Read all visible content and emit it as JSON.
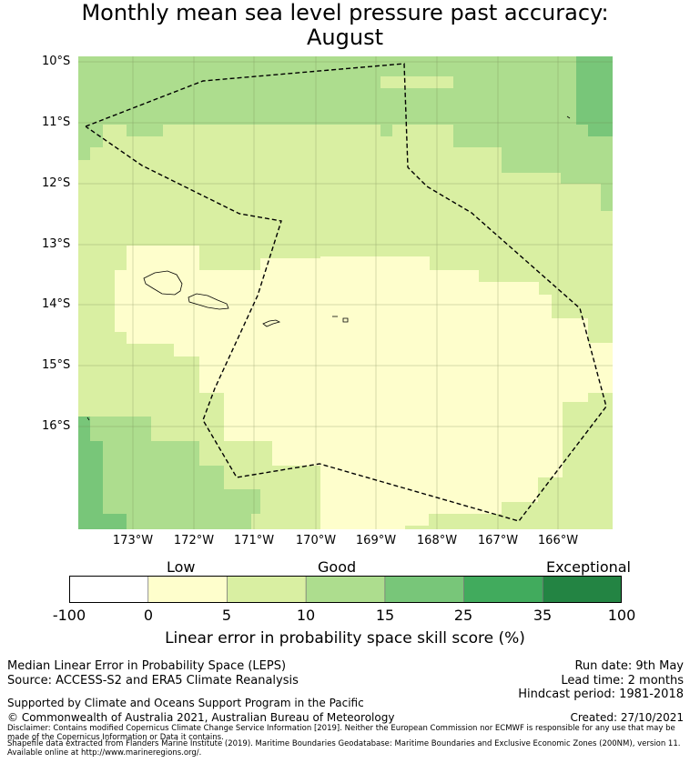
{
  "title_line1": "Monthly mean sea level pressure past accuracy:",
  "title_line2": "August",
  "map": {
    "lat_labels": [
      "10°S",
      "11°S",
      "12°S",
      "13°S",
      "14°S",
      "15°S",
      "16°S"
    ],
    "lon_labels": [
      "173°W",
      "172°W",
      "171°W",
      "170°W",
      "169°W",
      "168°W",
      "167°W",
      "166°W"
    ],
    "region_colors": {
      "low": "#fefecc",
      "good_low": "#d9efa2",
      "good_high": "#addd8e",
      "good_plus": "#78c679",
      "eez_line": "#000000"
    }
  },
  "colorbar": {
    "category_labels": [
      "Low",
      "Good",
      "Exceptional"
    ],
    "ticks": [
      "-100",
      "0",
      "5",
      "10",
      "15",
      "25",
      "35",
      "100"
    ],
    "colors": [
      "#ffffff",
      "#fefecc",
      "#d9efa2",
      "#addd8e",
      "#78c679",
      "#41ab5d",
      "#238443"
    ],
    "xlabel": "Linear error in probability space skill score (%)"
  },
  "footer": {
    "line1": "Median Linear Error in Probability Space (LEPS)",
    "line2": "Source: ACCESS-S2 and ERA5 Climate Reanalysis",
    "line3": "Supported by Climate and Oceans Support Program in the Pacific",
    "line4": "© Commonwealth of Australia 2021, Australian Bureau of Meteorology",
    "run_date": "Run date: 9th May",
    "lead_time": "Lead time: 2 months",
    "hindcast": "Hindcast period: 1981-2018",
    "created": "Created: 27/10/2021",
    "disclaimer": "Disclaimer: Contains modified Copernicus Climate Change Service Information [2019]. Neither the European Commission nor ECMWF is responsible for any use that may be made of the Copernicus Information or Data it contains.",
    "shapefile": "Shapefile data extracted from Flanders Marine Institute (2019). Maritime Boundaries Geodatabase: Maritime Boundaries and Exclusive Economic Zones (200NM), version 11. Available online at http://www.marineregions.org/."
  }
}
